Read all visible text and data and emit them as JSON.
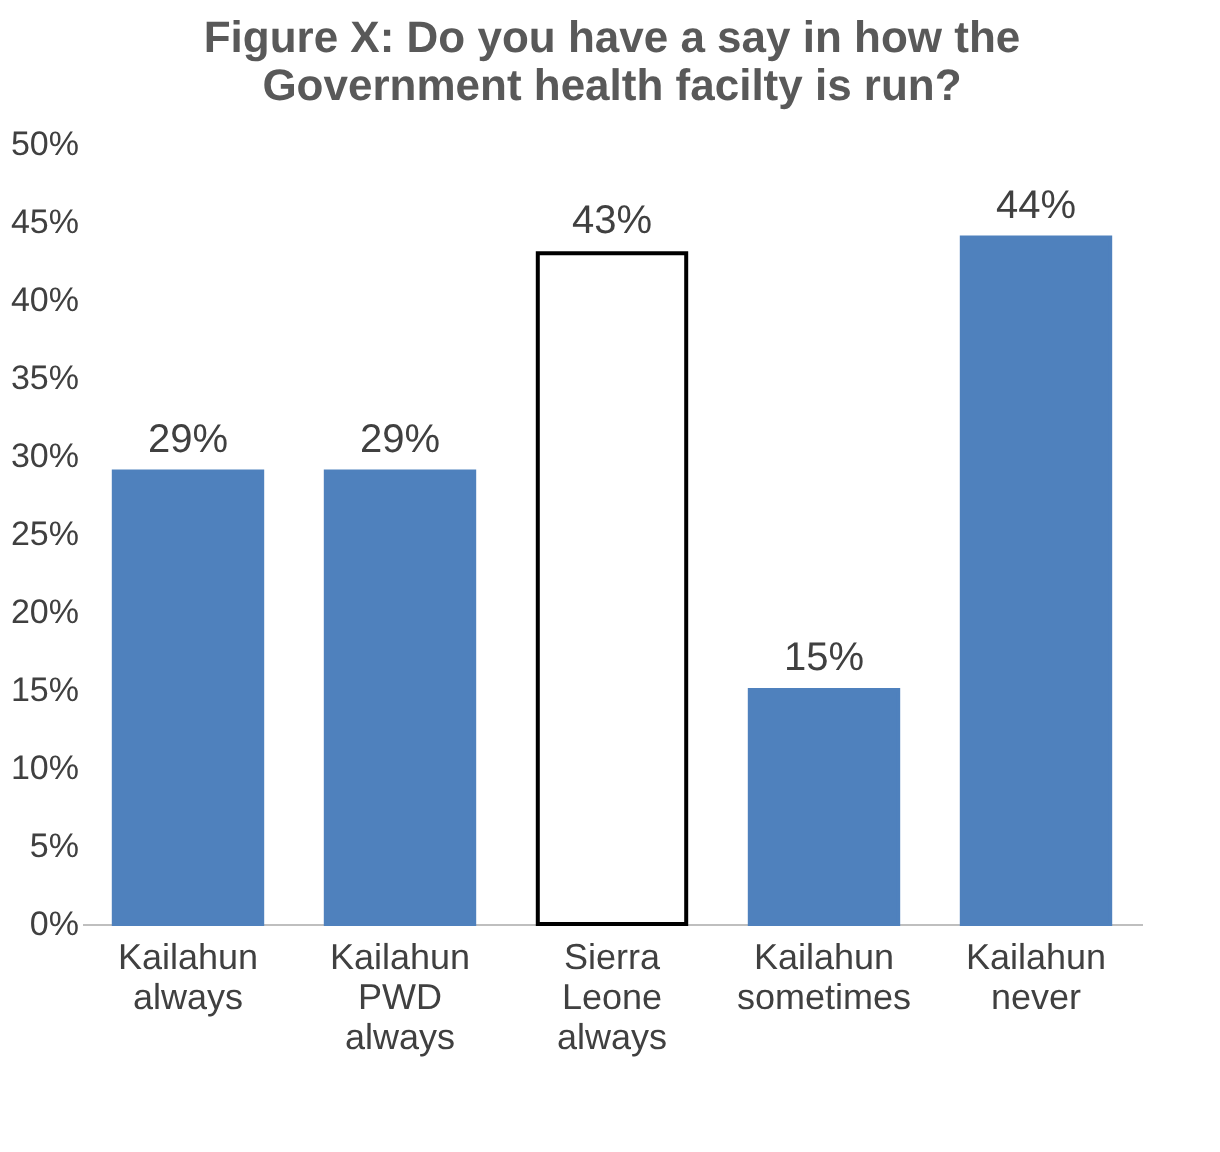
{
  "chart_data": {
    "type": "bar",
    "title": "Figure X: Do you have a say in how the\nGovernment health facilty is run?",
    "categories": [
      "Kailahun\nalways",
      "Kailahun\nPWD\nalways",
      "Sierra\nLeone\nalways",
      "Kailahun\nsometimes",
      "Kailahun\nnever"
    ],
    "values": [
      29,
      29,
      43,
      15,
      44
    ],
    "colors": [
      "#4f81bd",
      "#4f81bd",
      "#ffffff",
      "#4f81bd",
      "#4f81bd"
    ],
    "value_labels": [
      "29%",
      "29%",
      "43%",
      "15%",
      "44%"
    ],
    "ylim": [
      0,
      50
    ],
    "yticks": [
      {
        "value": 0,
        "label": "0%"
      },
      {
        "value": 5,
        "label": "5%"
      },
      {
        "value": 10,
        "label": "10%"
      },
      {
        "value": 15,
        "label": "15%"
      },
      {
        "value": 20,
        "label": "20%"
      },
      {
        "value": 25,
        "label": "25%"
      },
      {
        "value": 30,
        "label": "30%"
      },
      {
        "value": 35,
        "label": "35%"
      },
      {
        "value": 40,
        "label": "40%"
      },
      {
        "value": 45,
        "label": "45%"
      },
      {
        "value": 50,
        "label": "50%"
      }
    ],
    "grid": false
  }
}
